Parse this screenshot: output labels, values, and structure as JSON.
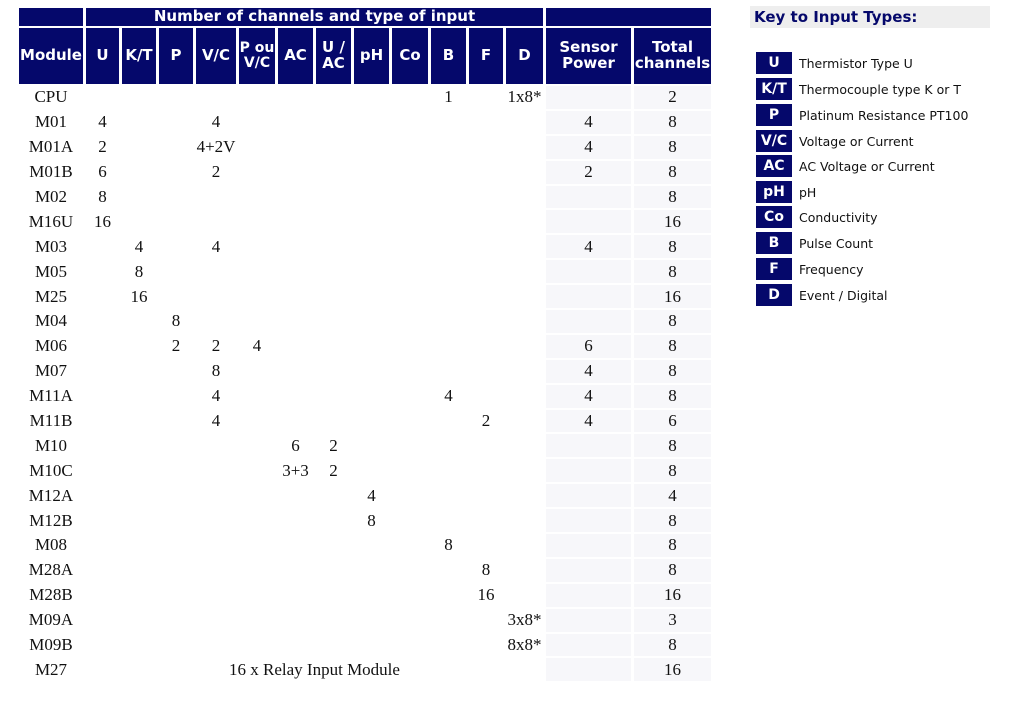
{
  "table": {
    "group_header": "Number of channels and type of input",
    "headers": {
      "module": "Module",
      "U": "U",
      "KT": "K/T",
      "P": "P",
      "VC": "V/C",
      "POVC": "P ou V/C",
      "AC": "AC",
      "UAC": "U / AC",
      "pH": "pH",
      "Co": "Co",
      "B": "B",
      "F": "F",
      "D": "D",
      "sensor_power": "Sensor Power",
      "total": "Total channels"
    },
    "rows": [
      {
        "module": "CPU",
        "U": "",
        "KT": "",
        "P": "",
        "VC": "",
        "POVC": "",
        "AC": "",
        "UAC": "",
        "pH": "",
        "Co": "",
        "B": "1",
        "F": "",
        "D": "1x8*",
        "power": "",
        "total": "2"
      },
      {
        "module": "M01",
        "U": "4",
        "KT": "",
        "P": "",
        "VC": "4",
        "POVC": "",
        "AC": "",
        "UAC": "",
        "pH": "",
        "Co": "",
        "B": "",
        "F": "",
        "D": "",
        "power": "4",
        "total": "8"
      },
      {
        "module": "M01A",
        "U": "2",
        "KT": "",
        "P": "",
        "VC": "4+2V",
        "POVC": "",
        "AC": "",
        "UAC": "",
        "pH": "",
        "Co": "",
        "B": "",
        "F": "",
        "D": "",
        "power": "4",
        "total": "8"
      },
      {
        "module": "M01B",
        "U": "6",
        "KT": "",
        "P": "",
        "VC": "2",
        "POVC": "",
        "AC": "",
        "UAC": "",
        "pH": "",
        "Co": "",
        "B": "",
        "F": "",
        "D": "",
        "power": "2",
        "total": "8"
      },
      {
        "module": "M02",
        "U": "8",
        "KT": "",
        "P": "",
        "VC": "",
        "POVC": "",
        "AC": "",
        "UAC": "",
        "pH": "",
        "Co": "",
        "B": "",
        "F": "",
        "D": "",
        "power": "",
        "total": "8"
      },
      {
        "module": "M16U",
        "U": "16",
        "KT": "",
        "P": "",
        "VC": "",
        "POVC": "",
        "AC": "",
        "UAC": "",
        "pH": "",
        "Co": "",
        "B": "",
        "F": "",
        "D": "",
        "power": "",
        "total": "16"
      },
      {
        "module": "M03",
        "U": "",
        "KT": "4",
        "P": "",
        "VC": "4",
        "POVC": "",
        "AC": "",
        "UAC": "",
        "pH": "",
        "Co": "",
        "B": "",
        "F": "",
        "D": "",
        "power": "4",
        "total": "8"
      },
      {
        "module": "M05",
        "U": "",
        "KT": "8",
        "P": "",
        "VC": "",
        "POVC": "",
        "AC": "",
        "UAC": "",
        "pH": "",
        "Co": "",
        "B": "",
        "F": "",
        "D": "",
        "power": "",
        "total": "8"
      },
      {
        "module": "M25",
        "U": "",
        "KT": "16",
        "P": "",
        "VC": "",
        "POVC": "",
        "AC": "",
        "UAC": "",
        "pH": "",
        "Co": "",
        "B": "",
        "F": "",
        "D": "",
        "power": "",
        "total": "16"
      },
      {
        "module": "M04",
        "U": "",
        "KT": "",
        "P": "8",
        "VC": "",
        "POVC": "",
        "AC": "",
        "UAC": "",
        "pH": "",
        "Co": "",
        "B": "",
        "F": "",
        "D": "",
        "power": "",
        "total": "8"
      },
      {
        "module": "M06",
        "U": "",
        "KT": "",
        "P": "2",
        "VC": "2",
        "POVC": "4",
        "AC": "",
        "UAC": "",
        "pH": "",
        "Co": "",
        "B": "",
        "F": "",
        "D": "",
        "power": "6",
        "total": "8"
      },
      {
        "module": "M07",
        "U": "",
        "KT": "",
        "P": "",
        "VC": "8",
        "POVC": "",
        "AC": "",
        "UAC": "",
        "pH": "",
        "Co": "",
        "B": "",
        "F": "",
        "D": "",
        "power": "4",
        "total": "8"
      },
      {
        "module": "M11A",
        "U": "",
        "KT": "",
        "P": "",
        "VC": "4",
        "POVC": "",
        "AC": "",
        "UAC": "",
        "pH": "",
        "Co": "",
        "B": "4",
        "F": "",
        "D": "",
        "power": "4",
        "total": "8"
      },
      {
        "module": "M11B",
        "U": "",
        "KT": "",
        "P": "",
        "VC": "4",
        "POVC": "",
        "AC": "",
        "UAC": "",
        "pH": "",
        "Co": "",
        "B": "",
        "F": "2",
        "D": "",
        "power": "4",
        "total": "6"
      },
      {
        "module": "M10",
        "U": "",
        "KT": "",
        "P": "",
        "VC": "",
        "POVC": "",
        "AC": "6",
        "UAC": "2",
        "pH": "",
        "Co": "",
        "B": "",
        "F": "",
        "D": "",
        "power": "",
        "total": "8"
      },
      {
        "module": "M10C",
        "U": "",
        "KT": "",
        "P": "",
        "VC": "",
        "POVC": "",
        "AC": "3+3",
        "UAC": "2",
        "pH": "",
        "Co": "",
        "B": "",
        "F": "",
        "D": "",
        "power": "",
        "total": "8"
      },
      {
        "module": "M12A",
        "U": "",
        "KT": "",
        "P": "",
        "VC": "",
        "POVC": "",
        "AC": "",
        "UAC": "",
        "pH": "4",
        "Co": "",
        "B": "",
        "F": "",
        "D": "",
        "power": "",
        "total": "4"
      },
      {
        "module": "M12B",
        "U": "",
        "KT": "",
        "P": "",
        "VC": "",
        "POVC": "",
        "AC": "",
        "UAC": "",
        "pH": "8",
        "Co": "",
        "B": "",
        "F": "",
        "D": "",
        "power": "",
        "total": "8"
      },
      {
        "module": "M08",
        "U": "",
        "KT": "",
        "P": "",
        "VC": "",
        "POVC": "",
        "AC": "",
        "UAC": "",
        "pH": "",
        "Co": "",
        "B": "8",
        "F": "",
        "D": "",
        "power": "",
        "total": "8"
      },
      {
        "module": "M28A",
        "U": "",
        "KT": "",
        "P": "",
        "VC": "",
        "POVC": "",
        "AC": "",
        "UAC": "",
        "pH": "",
        "Co": "",
        "B": "",
        "F": "8",
        "D": "",
        "power": "",
        "total": "8"
      },
      {
        "module": "M28B",
        "U": "",
        "KT": "",
        "P": "",
        "VC": "",
        "POVC": "",
        "AC": "",
        "UAC": "",
        "pH": "",
        "Co": "",
        "B": "",
        "F": "16",
        "D": "",
        "power": "",
        "total": "16"
      },
      {
        "module": "M09A",
        "U": "",
        "KT": "",
        "P": "",
        "VC": "",
        "POVC": "",
        "AC": "",
        "UAC": "",
        "pH": "",
        "Co": "",
        "B": "",
        "F": "",
        "D": "3x8*",
        "power": "",
        "total": "3"
      },
      {
        "module": "M09B",
        "U": "",
        "KT": "",
        "P": "",
        "VC": "",
        "POVC": "",
        "AC": "",
        "UAC": "",
        "pH": "",
        "Co": "",
        "B": "",
        "F": "",
        "D": "8x8*",
        "power": "",
        "total": "8"
      }
    ],
    "last_row": {
      "module": "M27",
      "note": "16 x Relay Input Module",
      "total": "16"
    }
  },
  "key": {
    "title": "Key to Input Types:",
    "items": [
      {
        "code": "U",
        "label": "Thermistor Type U"
      },
      {
        "code": "K/T",
        "label": "Thermocouple type K or T"
      },
      {
        "code": "P",
        "label": "Platinum Resistance PT100"
      },
      {
        "code": "V/C",
        "label": "Voltage or Current"
      },
      {
        "code": "AC",
        "label": "AC Voltage or Current"
      },
      {
        "code": "pH",
        "label": "pH"
      },
      {
        "code": "Co",
        "label": "Conductivity"
      },
      {
        "code": "B",
        "label": "Pulse Count"
      },
      {
        "code": "F",
        "label": "Frequency"
      },
      {
        "code": "D",
        "label": "Event / Digital"
      }
    ]
  },
  "colors": {
    "header_bg": "#05086b",
    "header_text": "#ffffff",
    "key_title_bg": "#eeeeee"
  }
}
